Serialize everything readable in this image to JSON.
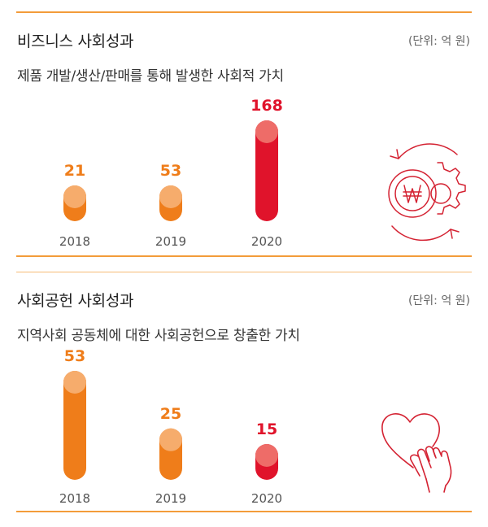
{
  "colors": {
    "orange": "#ef7d1a",
    "orange_cap": "#f6ac6c",
    "red": "#e0132b",
    "red_cap": "#ee6c68",
    "rule": "#f39c3a",
    "axis_text": "#555555",
    "icon_red": "#d42232"
  },
  "chart_data": [
    {
      "type": "bar",
      "title": "비즈니스 사회성과",
      "subtitle": "제품 개발/생산/판매를 통해 발생한 사회적 가치",
      "unit": "(단위: 억 원)",
      "categories": [
        "2018",
        "2019",
        "2020"
      ],
      "values": [
        21,
        53,
        168
      ],
      "value_labels": [
        "21",
        "53",
        "168"
      ],
      "bar_colors": [
        "orange",
        "orange",
        "red"
      ],
      "icon": "won-gear-cycle-icon"
    },
    {
      "type": "bar",
      "title": "사회공헌 사회성과",
      "subtitle": "지역사회 공동체에 대한 사회공헌으로 창출한 가치",
      "unit": "(단위: 억 원)",
      "categories": [
        "2018",
        "2019",
        "2020"
      ],
      "values": [
        53,
        25,
        15
      ],
      "value_labels": [
        "53",
        "25",
        "15"
      ],
      "bar_colors": [
        "orange",
        "orange",
        "red"
      ],
      "icon": "heart-hand-icon"
    }
  ]
}
